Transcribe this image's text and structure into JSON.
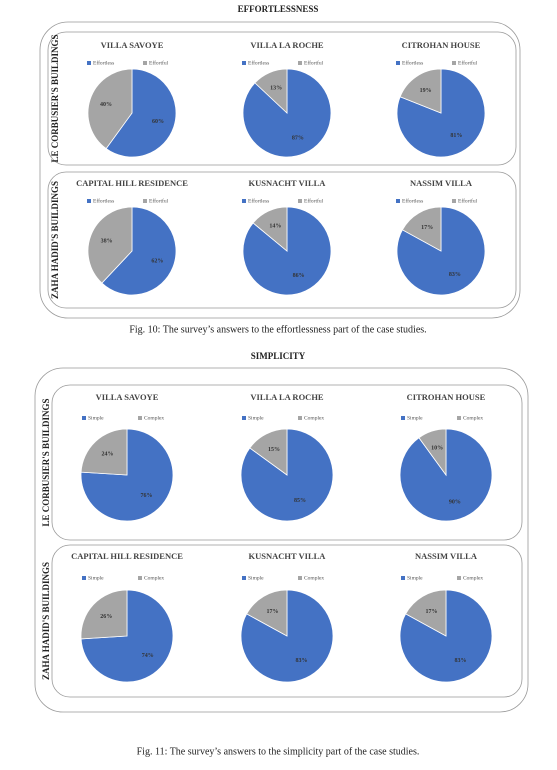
{
  "sections": [
    {
      "title": "EFFORTLESSNESS",
      "groups": [
        "LE CORBUSIER'S BUILDINGS",
        "ZAHA HADID'S BUILDINGS"
      ],
      "caption": "Fig. 10: The survey’s answers to the effortlessness part of the case studies."
    },
    {
      "title": "SIMPLICITY",
      "groups": [
        "LE CORBUSIER'S BUILDINGS",
        "ZAHA HADID'S BUILDINGS"
      ],
      "caption": "Fig. 11: The survey’s answers to the simplicity part of the case studies."
    }
  ],
  "chart_data": [
    {
      "type": "pie",
      "title": "VILLA SAVOYE",
      "categories": [
        "Effortless",
        "Effortful"
      ],
      "values": [
        60,
        40
      ],
      "value_labels": [
        "60%",
        "40%"
      ],
      "colors": [
        "#4472c4",
        "#a5a5a5"
      ]
    },
    {
      "type": "pie",
      "title": "VILLA LA ROCHE",
      "categories": [
        "Effortless",
        "Effortful"
      ],
      "values": [
        87,
        13
      ],
      "value_labels": [
        "87%",
        "13%"
      ],
      "colors": [
        "#4472c4",
        "#a5a5a5"
      ]
    },
    {
      "type": "pie",
      "title": "CITROHAN HOUSE",
      "categories": [
        "Effortless",
        "Effortful"
      ],
      "values": [
        81,
        19
      ],
      "value_labels": [
        "81%",
        "19%"
      ],
      "colors": [
        "#4472c4",
        "#a5a5a5"
      ]
    },
    {
      "type": "pie",
      "title": "CAPITAL HILL RESIDENCE",
      "categories": [
        "Effortless",
        "Effortful"
      ],
      "values": [
        62,
        38
      ],
      "value_labels": [
        "62%",
        "38%"
      ],
      "colors": [
        "#4472c4",
        "#a5a5a5"
      ]
    },
    {
      "type": "pie",
      "title": "KUSNACHT VILLA",
      "categories": [
        "Effortless",
        "Effortful"
      ],
      "values": [
        86,
        14
      ],
      "value_labels": [
        "86%",
        "14%"
      ],
      "colors": [
        "#4472c4",
        "#a5a5a5"
      ]
    },
    {
      "type": "pie",
      "title": "NASSIM VILLA",
      "categories": [
        "Effortless",
        "Effortful"
      ],
      "values": [
        83,
        17
      ],
      "value_labels": [
        "83%",
        "17%"
      ],
      "colors": [
        "#4472c4",
        "#a5a5a5"
      ]
    },
    {
      "type": "pie",
      "title": "VILLA SAVOYE",
      "categories": [
        "Simple",
        "Complex"
      ],
      "values": [
        76,
        24
      ],
      "value_labels": [
        "76%",
        "24%"
      ],
      "colors": [
        "#4472c4",
        "#a5a5a5"
      ]
    },
    {
      "type": "pie",
      "title": "VILLA LA ROCHE",
      "categories": [
        "Simple",
        "Complex"
      ],
      "values": [
        85,
        15
      ],
      "value_labels": [
        "85%",
        "15%"
      ],
      "colors": [
        "#4472c4",
        "#a5a5a5"
      ]
    },
    {
      "type": "pie",
      "title": "CITROHAN HOUSE",
      "categories": [
        "Simple",
        "Complex"
      ],
      "values": [
        90,
        10
      ],
      "value_labels": [
        "90%",
        "10%"
      ],
      "colors": [
        "#4472c4",
        "#a5a5a5"
      ]
    },
    {
      "type": "pie",
      "title": "CAPITAL HILL RESIDENCE",
      "categories": [
        "Simple",
        "Complex"
      ],
      "values": [
        74,
        26
      ],
      "value_labels": [
        "74%",
        "26%"
      ],
      "colors": [
        "#4472c4",
        "#a5a5a5"
      ]
    },
    {
      "type": "pie",
      "title": "KUSNACHT VILLA",
      "categories": [
        "Simple",
        "Complex"
      ],
      "values": [
        83,
        17
      ],
      "value_labels": [
        "83%",
        "17%"
      ],
      "colors": [
        "#4472c4",
        "#a5a5a5"
      ]
    },
    {
      "type": "pie",
      "title": "NASSIM VILLA",
      "categories": [
        "Simple",
        "Complex"
      ],
      "values": [
        83,
        17
      ],
      "value_labels": [
        "83%",
        "17%"
      ],
      "colors": [
        "#4472c4",
        "#a5a5a5"
      ]
    }
  ]
}
